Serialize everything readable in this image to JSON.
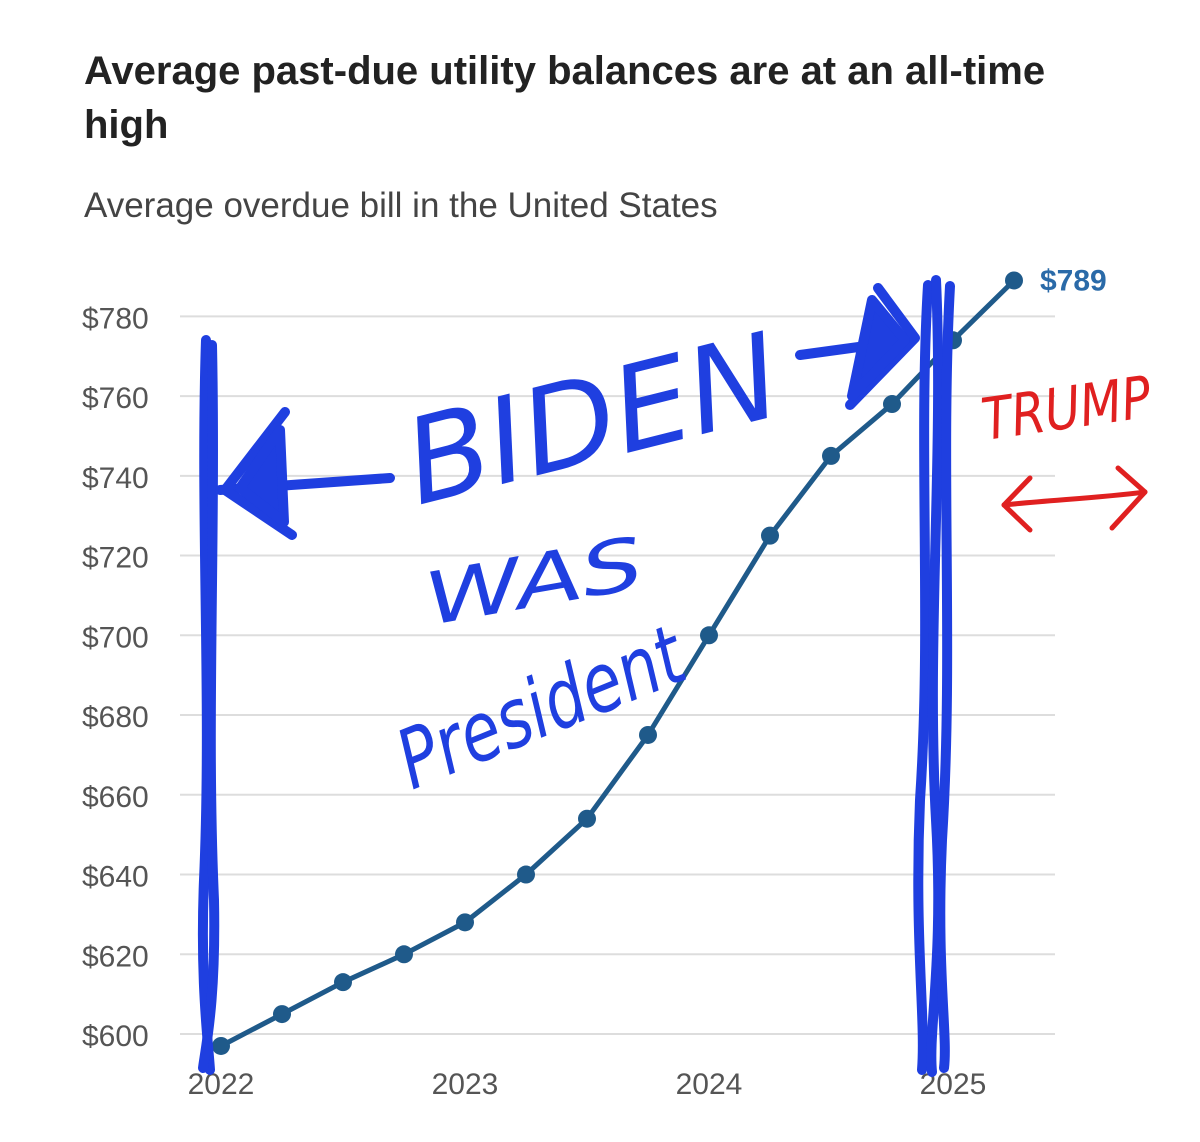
{
  "chart_data": {
    "type": "line",
    "title": "Average past-due utility balances are at an all-time high",
    "subtitle": "Average overdue bill in the United States",
    "xlabel": "",
    "ylabel": "",
    "x_tick_labels": [
      "2022",
      "2023",
      "2024",
      "2025"
    ],
    "y_tick_labels": [
      "$600",
      "$620",
      "$640",
      "$660",
      "$680",
      "$700",
      "$720",
      "$740",
      "$760",
      "$780"
    ],
    "ylim": [
      595,
      795
    ],
    "xlim": [
      2021.9,
      2025.3
    ],
    "grid": true,
    "series": [
      {
        "x": [
          2022.0,
          2022.25,
          2022.5,
          2022.75,
          2023.0,
          2023.25,
          2023.5,
          2023.75,
          2024.0,
          2024.25,
          2024.5,
          2024.75,
          2025.0,
          2025.25
        ],
        "y": [
          597,
          605,
          613,
          620,
          628,
          640,
          654,
          675,
          700,
          725,
          745,
          758,
          774,
          789
        ],
        "end_label": "$789"
      }
    ],
    "colors": {
      "line": "#1f5a8a",
      "grid": "#dddddd",
      "end_label": "#2a6aa8",
      "blue_marker": "#1f3fe0",
      "red_marker": "#e02020"
    },
    "annotations": [
      "BIDEN",
      "WAS",
      "President",
      "TRUMP"
    ]
  }
}
